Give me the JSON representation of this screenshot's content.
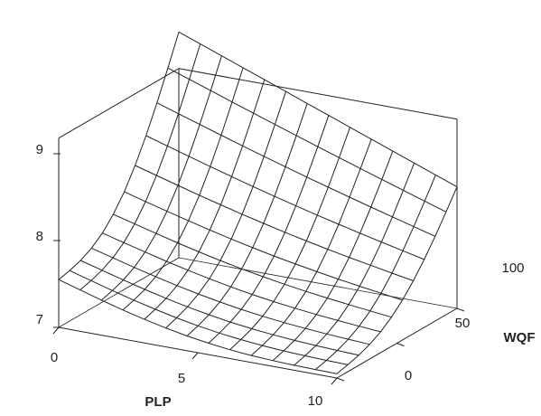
{
  "chart_data": {
    "type": "surface",
    "title": "",
    "xlabel": "PLP",
    "ylabel": "WQF",
    "zlabel": "",
    "x_range": [
      0,
      10
    ],
    "y_range": [
      0,
      100
    ],
    "z_range": [
      7,
      9
    ],
    "x_ticks": [
      0,
      5,
      10
    ],
    "y_ticks": [
      0,
      50,
      100
    ],
    "z_ticks": [
      7,
      8,
      9
    ],
    "x_tick_labels": [
      "0",
      "5",
      "10"
    ],
    "y_tick_labels": [
      "0",
      "50",
      "100"
    ],
    "z_tick_labels": [
      "7",
      "8",
      "9"
    ],
    "grid_x_values": [
      0,
      0.769,
      1.538,
      2.308,
      3.077,
      3.846,
      4.615,
      5.385,
      6.154,
      6.923,
      7.692,
      8.462,
      9.231,
      10
    ],
    "grid_y_values": [
      0,
      9.09,
      18.18,
      27.27,
      36.36,
      45.45,
      54.55,
      63.64,
      72.73,
      81.82,
      90.91,
      100
    ],
    "corner_values": {
      "plp0_wqf0": 7.55,
      "plp10_wqf0": 7.05,
      "plp0_wqf100": 9.6,
      "plp10_wqf100": 8.4
    },
    "colors": {
      "lines": "#222222",
      "background": "#ffffff"
    }
  }
}
